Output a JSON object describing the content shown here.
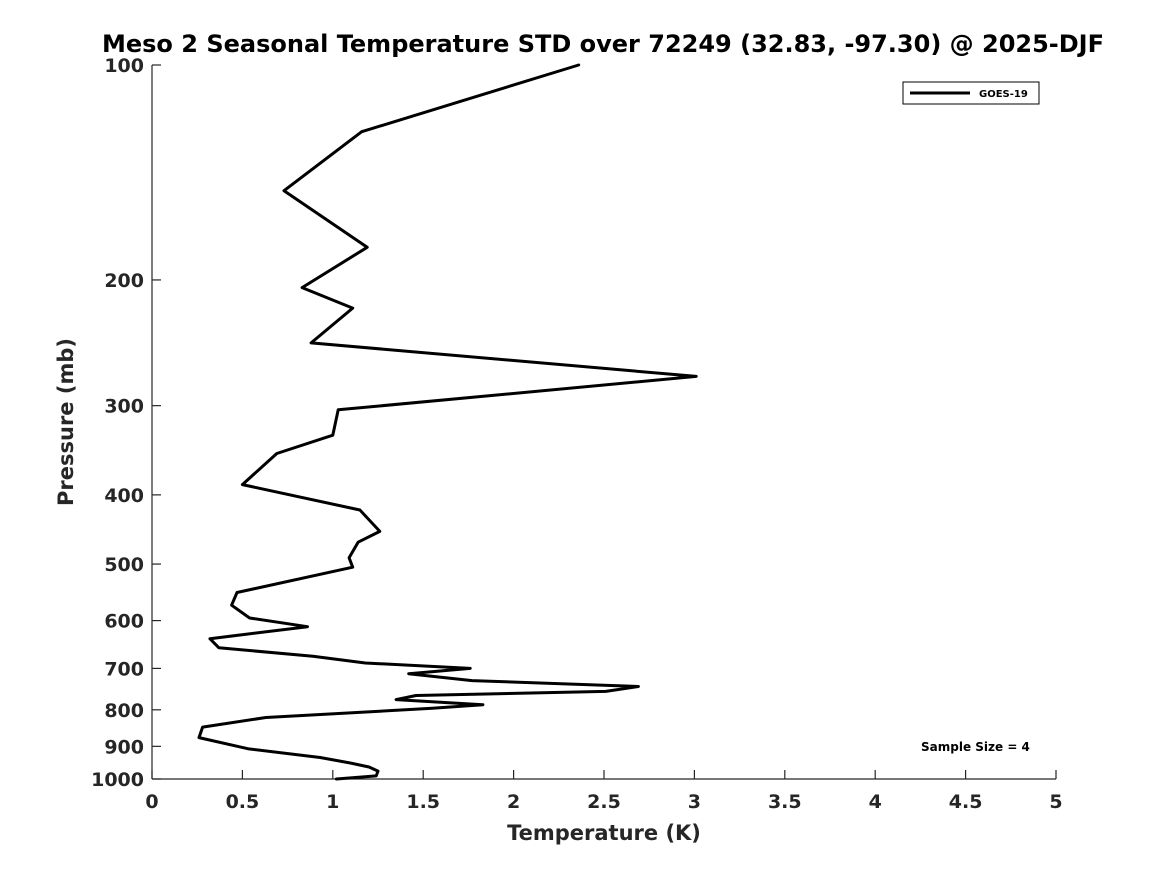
{
  "chart_data": {
    "type": "line",
    "title": "Meso 2 Seasonal Temperature STD over 72249 (32.83, -97.30) @ 2025-DJF",
    "xlabel": "Temperature (K)",
    "ylabel": "Pressure (mb)",
    "xlim": [
      0,
      5
    ],
    "ylim": [
      1000,
      100
    ],
    "yscale": "log",
    "y_inverted": true,
    "grid": false,
    "legend_position": "top-right",
    "xticks": [
      "0",
      "0.5",
      "1",
      "1.5",
      "2",
      "2.5",
      "3",
      "3.5",
      "4",
      "4.5",
      "5"
    ],
    "yticks": [
      "100",
      "200",
      "300",
      "400",
      "500",
      "600",
      "700",
      "800",
      "900",
      "1000"
    ],
    "annotation": "Sample Size = 4",
    "series": [
      {
        "name": "GOES-19",
        "color": "#000000",
        "points": [
          [
            2.36,
            100
          ],
          [
            1.16,
            124
          ],
          [
            0.73,
            150
          ],
          [
            1.19,
            180
          ],
          [
            0.83,
            205
          ],
          [
            1.11,
            219
          ],
          [
            0.88,
            245
          ],
          [
            3.01,
            273
          ],
          [
            1.03,
            304
          ],
          [
            1.0,
            330
          ],
          [
            0.69,
            350
          ],
          [
            0.5,
            387
          ],
          [
            1.15,
            420
          ],
          [
            1.26,
            450
          ],
          [
            1.14,
            466
          ],
          [
            1.09,
            490
          ],
          [
            1.11,
            505
          ],
          [
            0.47,
            548
          ],
          [
            0.44,
            571
          ],
          [
            0.54,
            595
          ],
          [
            0.86,
            612
          ],
          [
            0.32,
            636
          ],
          [
            0.37,
            655
          ],
          [
            0.89,
            673
          ],
          [
            1.18,
            688
          ],
          [
            1.76,
            700
          ],
          [
            1.42,
            712
          ],
          [
            1.77,
            728
          ],
          [
            2.69,
            742
          ],
          [
            2.51,
            754
          ],
          [
            1.46,
            764
          ],
          [
            1.35,
            774
          ],
          [
            1.83,
            787
          ],
          [
            1.55,
            796
          ],
          [
            0.63,
            820
          ],
          [
            0.28,
            846
          ],
          [
            0.26,
            875
          ],
          [
            0.53,
            907
          ],
          [
            0.93,
            933
          ],
          [
            1.1,
            950
          ],
          [
            1.2,
            962
          ],
          [
            1.25,
            975
          ],
          [
            1.24,
            990
          ],
          [
            1.02,
            1000
          ]
        ]
      }
    ]
  }
}
